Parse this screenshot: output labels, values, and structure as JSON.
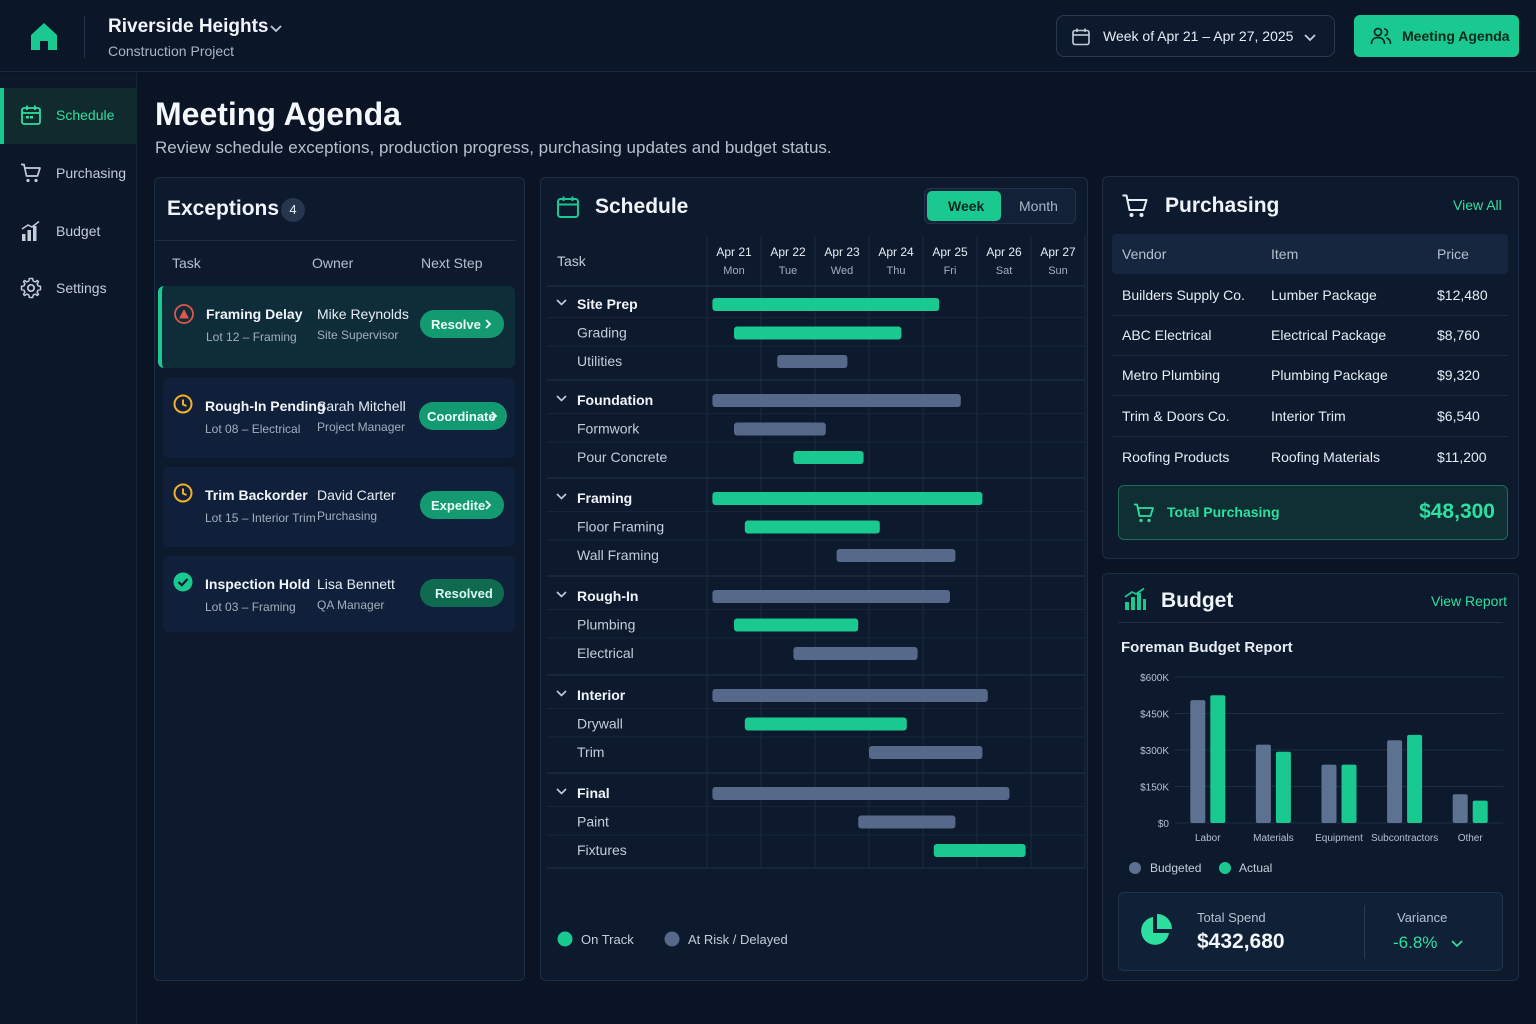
{
  "header": {
    "project_name": "Riverside Heights",
    "project_subtitle": "Construction Project",
    "week_range": "Week of Apr 21 – Apr 27, 2025",
    "agenda_button": "Meeting Agenda"
  },
  "sidebar": {
    "items": [
      {
        "label": "Schedule",
        "icon": "calendar-icon",
        "active": true
      },
      {
        "label": "Purchasing",
        "icon": "cart-icon",
        "active": false
      },
      {
        "label": "Budget",
        "icon": "bar-chart-icon",
        "active": false
      },
      {
        "label": "Settings",
        "icon": "gear-icon",
        "active": false
      }
    ]
  },
  "page": {
    "title": "Meeting Agenda",
    "subtitle": "Review schedule exceptions, production progress, purchasing updates and budget status."
  },
  "colors": {
    "accent": "#19c98f",
    "accent_text": "#2ee0a0",
    "delayed": "#56698a",
    "warning": "#f2b027",
    "critical": "#e0574f",
    "background": "#0a1424",
    "panel": "#0d1a2d"
  },
  "exceptions": {
    "title": "Exceptions",
    "count": "4",
    "columns": [
      "Task",
      "Owner",
      "Next Step"
    ],
    "items": [
      {
        "task": "Framing Delay",
        "lot": "Lot 12 – Framing",
        "owner": "Mike Reynolds",
        "role": "Site Supervisor",
        "action": "Resolve",
        "status": "critical",
        "icon": "alert-icon"
      },
      {
        "task": "Rough-In Pending",
        "lot": "Lot 08 – Electrical",
        "owner": "Sarah Mitchell",
        "role": "Project Manager",
        "action": "Coordinate",
        "status": "warning",
        "icon": "clock-icon"
      },
      {
        "task": "Trim Backorder",
        "lot": "Lot 15 – Interior Trim",
        "owner": "David Carter",
        "role": "Purchasing",
        "action": "Expedite",
        "status": "warning",
        "icon": "clock-icon"
      },
      {
        "task": "Inspection Hold",
        "lot": "Lot 03 – Framing",
        "owner": "Lisa Bennett",
        "role": "QA Manager",
        "action": "Resolved",
        "status": "resolved",
        "icon": "check-circle-icon"
      }
    ]
  },
  "schedule": {
    "title": "Schedule",
    "view_options": [
      "Week",
      "Month"
    ],
    "selected_view": "Week",
    "task_header": "Task",
    "days": [
      {
        "date": "Apr 21",
        "dow": "Mon"
      },
      {
        "date": "Apr 22",
        "dow": "Tue"
      },
      {
        "date": "Apr 23",
        "dow": "Wed"
      },
      {
        "date": "Apr 24",
        "dow": "Thu"
      },
      {
        "date": "Apr 25",
        "dow": "Fri"
      },
      {
        "date": "Apr 26",
        "dow": "Sat"
      },
      {
        "date": "Apr 27",
        "dow": "Sun"
      }
    ],
    "groups": [
      {
        "name": "Site Prep",
        "bar": {
          "start": 0.1,
          "end": 4.3,
          "status": "on_track"
        },
        "tasks": [
          {
            "name": "Grading",
            "start": 0.5,
            "end": 3.6,
            "status": "on_track"
          },
          {
            "name": "Utilities",
            "start": 1.3,
            "end": 2.6,
            "status": "delayed"
          }
        ]
      },
      {
        "name": "Foundation",
        "bar": {
          "start": 0.1,
          "end": 4.7,
          "status": "delayed"
        },
        "tasks": [
          {
            "name": "Formwork",
            "start": 0.5,
            "end": 2.2,
            "status": "delayed"
          },
          {
            "name": "Pour Concrete",
            "start": 1.6,
            "end": 2.9,
            "status": "on_track"
          }
        ]
      },
      {
        "name": "Framing",
        "bar": {
          "start": 0.1,
          "end": 5.1,
          "status": "on_track"
        },
        "tasks": [
          {
            "name": "Floor Framing",
            "start": 0.7,
            "end": 3.2,
            "status": "on_track"
          },
          {
            "name": "Wall Framing",
            "start": 2.4,
            "end": 4.6,
            "status": "delayed"
          }
        ]
      },
      {
        "name": "Rough-In",
        "bar": {
          "start": 0.1,
          "end": 4.5,
          "status": "delayed"
        },
        "tasks": [
          {
            "name": "Plumbing",
            "start": 0.5,
            "end": 2.8,
            "status": "on_track"
          },
          {
            "name": "Electrical",
            "start": 1.6,
            "end": 3.9,
            "status": "delayed"
          }
        ]
      },
      {
        "name": "Interior",
        "bar": {
          "start": 0.1,
          "end": 5.2,
          "status": "delayed"
        },
        "tasks": [
          {
            "name": "Drywall",
            "start": 0.7,
            "end": 3.7,
            "status": "on_track"
          },
          {
            "name": "Trim",
            "start": 3.0,
            "end": 5.1,
            "status": "delayed"
          }
        ]
      },
      {
        "name": "Final",
        "bar": {
          "start": 0.1,
          "end": 5.6,
          "status": "delayed"
        },
        "tasks": [
          {
            "name": "Paint",
            "start": 2.8,
            "end": 4.6,
            "status": "delayed"
          },
          {
            "name": "Fixtures",
            "start": 4.2,
            "end": 5.9,
            "status": "on_track"
          }
        ]
      }
    ],
    "legend": [
      {
        "label": "On Track",
        "status": "on_track"
      },
      {
        "label": "At Risk / Delayed",
        "status": "delayed"
      }
    ]
  },
  "purchasing": {
    "title": "Purchasing",
    "view_all": "View All",
    "columns": [
      "Vendor",
      "Item",
      "Price"
    ],
    "rows": [
      {
        "vendor": "Builders Supply Co.",
        "item": "Lumber Package",
        "price": "$12,480"
      },
      {
        "vendor": "ABC Electrical",
        "item": "Electrical Package",
        "price": "$8,760"
      },
      {
        "vendor": "Metro Plumbing",
        "item": "Plumbing Package",
        "price": "$9,320"
      },
      {
        "vendor": "Trim & Doors Co.",
        "item": "Interior Trim",
        "price": "$6,540"
      },
      {
        "vendor": "Roofing Products",
        "item": "Roofing Materials",
        "price": "$11,200"
      }
    ],
    "total_label": "Total Purchasing",
    "total_value": "$48,300"
  },
  "budget": {
    "title": "Budget",
    "view_report": "View Report",
    "report_title": "Foreman Budget Report",
    "total_spend_label": "Total Spend",
    "total_spend_value": "$432,680",
    "variance_label": "Variance",
    "variance_value": "-6.8%"
  },
  "chart_data": {
    "type": "bar",
    "title": "Foreman Budget Report",
    "categories": [
      "Labor",
      "Materials",
      "Equipment",
      "Subcontractors",
      "Other"
    ],
    "series": [
      {
        "name": "Budgeted",
        "values": [
          505000,
          322000,
          240000,
          340000,
          118000
        ]
      },
      {
        "name": "Actual",
        "values": [
          525000,
          293000,
          240000,
          362000,
          92000
        ]
      }
    ],
    "ylim": [
      0,
      600000
    ],
    "yticks": [
      0,
      150000,
      300000,
      450000,
      600000
    ],
    "ytick_labels": [
      "$0",
      "$150K",
      "$300K",
      "$450K",
      "$600K"
    ],
    "colors": [
      "#5d7291",
      "#19c98f"
    ],
    "legend_position": "bottom-left",
    "grid": true
  }
}
